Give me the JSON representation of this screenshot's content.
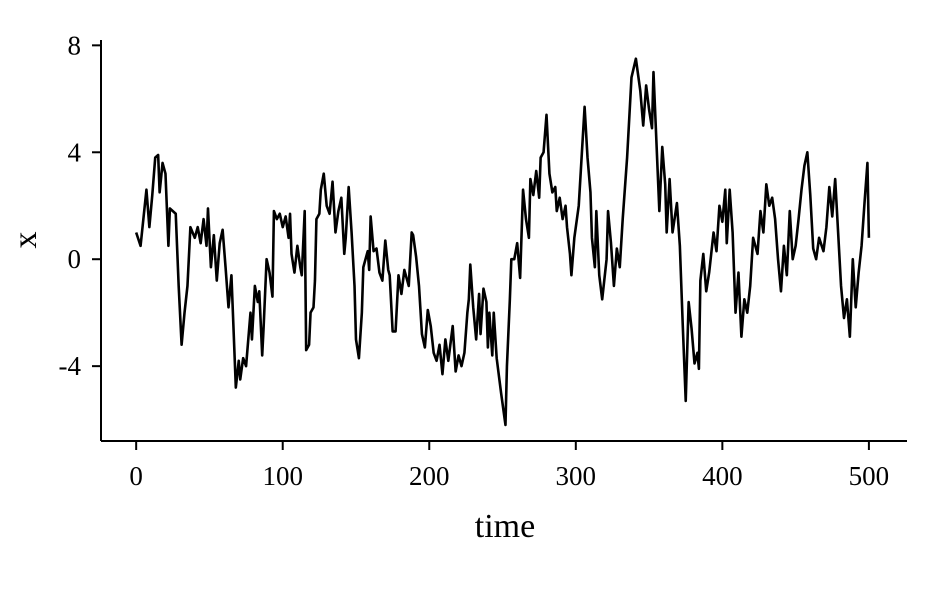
{
  "chart_data": {
    "type": "line",
    "x_label": "time",
    "y_label": "x",
    "color": "#000000",
    "grid": false,
    "xlim": [
      -24,
      526
    ],
    "ylim": [
      -6.8,
      8.2
    ],
    "xticks": [
      0,
      100,
      200,
      300,
      400,
      500
    ],
    "yticks": [
      -4,
      0,
      4,
      8
    ],
    "x": [
      0,
      3,
      7,
      9,
      11,
      13,
      15,
      16,
      18,
      20,
      22,
      23,
      27,
      29,
      31,
      33,
      35,
      37,
      40,
      42,
      44,
      46,
      48,
      49,
      51,
      53,
      55,
      57,
      59,
      61,
      63,
      65,
      68,
      70,
      71,
      73,
      75,
      78,
      79,
      81,
      83,
      84,
      86,
      87,
      89,
      91,
      93,
      94,
      96,
      98,
      100,
      102,
      104,
      105,
      106,
      108,
      110,
      112,
      113,
      115,
      116,
      118,
      119,
      121,
      122,
      123,
      125,
      126,
      128,
      130,
      132,
      134,
      136,
      138,
      140,
      142,
      143,
      145,
      147,
      149,
      150,
      152,
      154,
      155,
      158,
      159,
      160,
      162,
      164,
      166,
      168,
      170,
      172,
      173,
      175,
      177,
      179,
      181,
      183,
      186,
      188,
      189,
      191,
      193,
      195,
      197,
      199,
      201,
      203,
      205,
      207,
      209,
      211,
      213,
      216,
      218,
      220,
      222,
      224,
      226,
      227,
      228,
      230,
      232,
      234,
      235,
      237,
      239,
      240,
      241,
      243,
      244,
      246,
      249,
      252,
      253,
      255,
      256,
      258,
      260,
      262,
      264,
      266,
      268,
      269,
      271,
      273,
      275,
      276,
      278,
      280,
      282,
      284,
      286,
      287,
      289,
      291,
      293,
      294,
      296,
      297,
      299,
      302,
      306,
      308,
      310,
      311,
      313,
      314,
      316,
      318,
      321,
      322,
      324,
      326,
      328,
      330,
      332,
      335,
      338,
      341,
      344,
      346,
      348,
      350,
      352,
      353,
      355,
      357,
      359,
      361,
      362,
      364,
      366,
      369,
      371,
      373,
      375,
      377,
      379,
      381,
      383,
      384,
      385,
      387,
      389,
      391,
      394,
      396,
      398,
      400,
      402,
      403,
      405,
      407,
      409,
      411,
      413,
      415,
      417,
      419,
      421,
      424,
      426,
      428,
      430,
      432,
      434,
      436,
      438,
      440,
      442,
      444,
      446,
      448,
      450,
      452,
      454,
      456,
      458,
      460,
      462,
      464,
      466,
      469,
      471,
      473,
      475,
      477,
      479,
      481,
      483,
      485,
      487,
      489,
      491,
      493,
      495,
      497,
      499,
      500
    ],
    "values": [
      1.0,
      0.5,
      2.6,
      1.2,
      2.4,
      3.8,
      3.9,
      2.5,
      3.6,
      3.2,
      0.5,
      1.9,
      1.7,
      -1.0,
      -3.2,
      -2.0,
      -1.0,
      1.2,
      0.8,
      1.2,
      0.6,
      1.5,
      0.5,
      1.9,
      -0.3,
      0.9,
      -0.8,
      0.6,
      1.1,
      -0.3,
      -1.8,
      -0.6,
      -4.8,
      -3.8,
      -4.5,
      -3.7,
      -4.0,
      -2.0,
      -3.0,
      -1.0,
      -1.6,
      -1.2,
      -3.6,
      -2.5,
      0.0,
      -0.5,
      -1.4,
      1.8,
      1.5,
      1.7,
      1.2,
      1.6,
      0.8,
      1.7,
      0.2,
      -0.5,
      0.5,
      -0.3,
      -0.6,
      1.8,
      -3.4,
      -3.2,
      -2.0,
      -1.8,
      -0.8,
      1.5,
      1.7,
      2.6,
      3.2,
      2.0,
      1.7,
      2.9,
      1.0,
      1.8,
      2.3,
      0.2,
      0.8,
      2.7,
      1.0,
      -1.0,
      -3.0,
      -3.7,
      -2.0,
      -0.3,
      0.3,
      -0.4,
      1.6,
      0.3,
      0.4,
      -0.5,
      -0.8,
      0.7,
      -0.4,
      -0.6,
      -2.7,
      -2.7,
      -0.6,
      -1.3,
      -0.4,
      -1.0,
      1.0,
      0.9,
      0.1,
      -1.0,
      -2.8,
      -3.3,
      -1.9,
      -2.5,
      -3.5,
      -3.8,
      -3.2,
      -4.3,
      -3.0,
      -3.8,
      -2.5,
      -4.2,
      -3.6,
      -4.0,
      -3.5,
      -2.0,
      -1.5,
      -0.2,
      -1.8,
      -3.0,
      -1.3,
      -2.8,
      -1.1,
      -1.6,
      -3.3,
      -2.0,
      -3.6,
      -2.0,
      -3.7,
      -5.0,
      -6.2,
      -4.0,
      -1.5,
      0.0,
      0.0,
      0.6,
      -0.7,
      2.6,
      1.5,
      0.8,
      3.0,
      2.4,
      3.3,
      2.3,
      3.8,
      4.0,
      5.4,
      3.2,
      2.5,
      2.7,
      1.8,
      2.3,
      1.5,
      2.0,
      1.2,
      0.2,
      -0.6,
      0.8,
      2.0,
      5.7,
      3.8,
      2.5,
      0.8,
      -0.3,
      1.8,
      -0.6,
      -1.5,
      0.0,
      1.8,
      0.6,
      -1.0,
      0.4,
      -0.3,
      1.5,
      3.8,
      6.8,
      7.5,
      6.3,
      5.0,
      6.5,
      5.6,
      4.9,
      7.0,
      4.4,
      1.8,
      4.2,
      2.8,
      1.0,
      3.0,
      1.0,
      2.1,
      0.5,
      -2.5,
      -5.3,
      -1.6,
      -2.6,
      -3.9,
      -3.5,
      -4.1,
      -0.8,
      0.2,
      -1.2,
      -0.5,
      1.0,
      0.3,
      2.0,
      1.4,
      2.6,
      0.6,
      2.6,
      1.0,
      -2.0,
      -0.5,
      -2.9,
      -1.5,
      -2.0,
      -1.0,
      0.8,
      0.2,
      1.8,
      1.0,
      2.8,
      2.0,
      2.3,
      1.5,
      0.0,
      -1.2,
      0.5,
      -0.6,
      1.8,
      0.0,
      0.5,
      1.5,
      2.6,
      3.5,
      4.0,
      2.4,
      0.4,
      0.0,
      0.8,
      0.3,
      1.2,
      2.7,
      1.6,
      3.0,
      1.0,
      -1.0,
      -2.2,
      -1.5,
      -2.9,
      0.0,
      -1.8,
      -0.5,
      0.5,
      2.1,
      3.6,
      0.8
    ]
  }
}
